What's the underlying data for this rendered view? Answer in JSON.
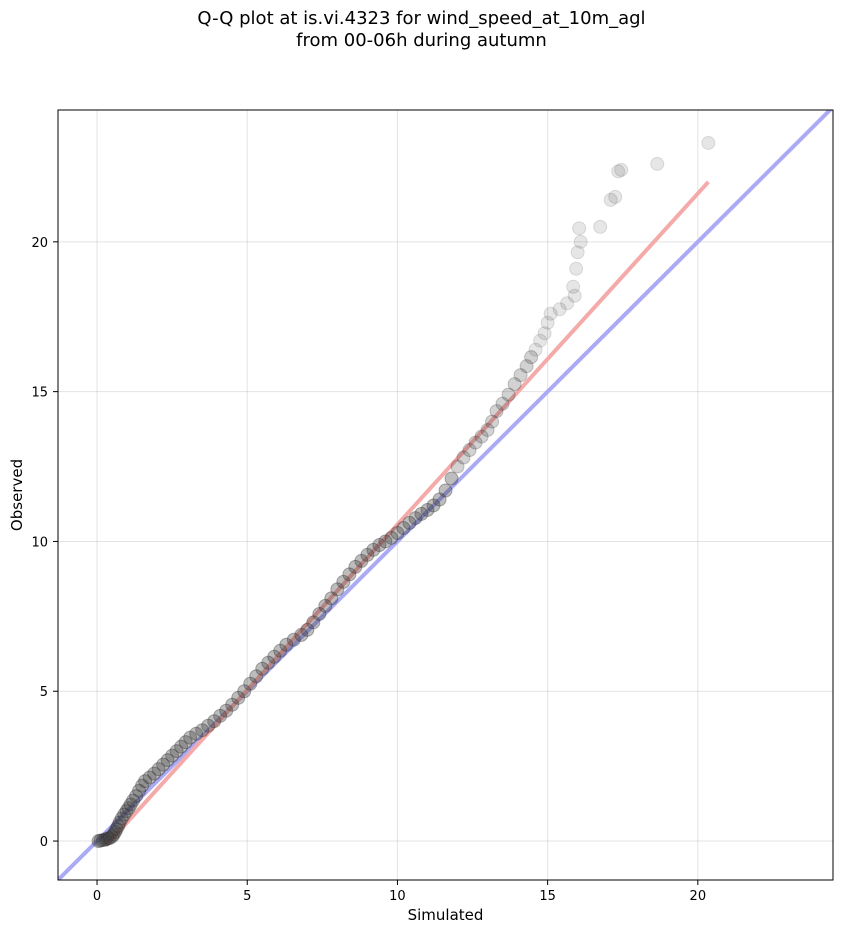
{
  "chart_data": {
    "type": "scatter",
    "title_line1": "Q-Q plot at is.vi.4323 for wind_speed_at_10m_agl",
    "title_line2": "from 00-06h during autumn",
    "xlabel": "Simulated",
    "ylabel": "Observed",
    "xlim": [
      -1.3,
      24.5
    ],
    "ylim": [
      -1.3,
      24.4
    ],
    "xticks": [
      0,
      5,
      10,
      15,
      20
    ],
    "yticks": [
      0,
      5,
      10,
      15,
      20
    ],
    "grid": true,
    "reference_line": {
      "name": "1:1",
      "color": "#aaaaf5",
      "slope": 1,
      "intercept": 0
    },
    "fit_line": {
      "color": "#f5aaaa",
      "x": [
        0.3,
        20.35
      ],
      "y": [
        -0.15,
        22.0
      ]
    },
    "point_color": "#333333",
    "series": [
      {
        "name": "quantiles",
        "points": [
          [
            0.05,
            0.0
          ],
          [
            0.12,
            0.02
          ],
          [
            0.2,
            0.03
          ],
          [
            0.28,
            0.05
          ],
          [
            0.35,
            0.08
          ],
          [
            0.42,
            0.1
          ],
          [
            0.5,
            0.15
          ],
          [
            0.55,
            0.22
          ],
          [
            0.6,
            0.3
          ],
          [
            0.65,
            0.4
          ],
          [
            0.7,
            0.5
          ],
          [
            0.75,
            0.62
          ],
          [
            0.82,
            0.75
          ],
          [
            0.9,
            0.88
          ],
          [
            0.98,
            1.0
          ],
          [
            1.05,
            1.1
          ],
          [
            1.12,
            1.22
          ],
          [
            1.2,
            1.35
          ],
          [
            1.3,
            1.5
          ],
          [
            1.4,
            1.68
          ],
          [
            1.5,
            1.85
          ],
          [
            1.6,
            2.0
          ],
          [
            1.75,
            2.12
          ],
          [
            1.9,
            2.25
          ],
          [
            2.05,
            2.4
          ],
          [
            2.2,
            2.55
          ],
          [
            2.35,
            2.7
          ],
          [
            2.5,
            2.85
          ],
          [
            2.65,
            3.0
          ],
          [
            2.8,
            3.15
          ],
          [
            2.95,
            3.3
          ],
          [
            3.1,
            3.45
          ],
          [
            3.3,
            3.58
          ],
          [
            3.5,
            3.7
          ],
          [
            3.7,
            3.85
          ],
          [
            3.9,
            4.0
          ],
          [
            4.1,
            4.18
          ],
          [
            4.3,
            4.35
          ],
          [
            4.5,
            4.55
          ],
          [
            4.7,
            4.78
          ],
          [
            4.9,
            5.0
          ],
          [
            5.1,
            5.25
          ],
          [
            5.3,
            5.5
          ],
          [
            5.5,
            5.75
          ],
          [
            5.7,
            5.95
          ],
          [
            5.9,
            6.15
          ],
          [
            6.1,
            6.35
          ],
          [
            6.3,
            6.55
          ],
          [
            6.55,
            6.72
          ],
          [
            6.8,
            6.88
          ],
          [
            7.0,
            7.05
          ],
          [
            7.2,
            7.3
          ],
          [
            7.4,
            7.58
          ],
          [
            7.6,
            7.85
          ],
          [
            7.8,
            8.1
          ],
          [
            8.0,
            8.4
          ],
          [
            8.2,
            8.65
          ],
          [
            8.4,
            8.9
          ],
          [
            8.6,
            9.15
          ],
          [
            8.8,
            9.35
          ],
          [
            9.0,
            9.55
          ],
          [
            9.2,
            9.72
          ],
          [
            9.4,
            9.88
          ],
          [
            9.6,
            10.0
          ],
          [
            9.8,
            10.12
          ],
          [
            10.0,
            10.28
          ],
          [
            10.2,
            10.45
          ],
          [
            10.4,
            10.62
          ],
          [
            10.6,
            10.78
          ],
          [
            10.8,
            10.92
          ],
          [
            11.0,
            11.05
          ],
          [
            11.2,
            11.2
          ],
          [
            11.4,
            11.4
          ],
          [
            11.6,
            11.7
          ],
          [
            11.8,
            12.1
          ],
          [
            12.0,
            12.5
          ],
          [
            12.2,
            12.8
          ],
          [
            12.4,
            13.05
          ],
          [
            12.6,
            13.3
          ],
          [
            12.8,
            13.5
          ],
          [
            13.0,
            13.72
          ],
          [
            13.15,
            14.0
          ],
          [
            13.3,
            14.35
          ],
          [
            13.5,
            14.6
          ],
          [
            13.7,
            14.9
          ],
          [
            13.9,
            15.25
          ],
          [
            14.1,
            15.55
          ],
          [
            14.3,
            15.85
          ],
          [
            14.45,
            16.15
          ],
          [
            14.6,
            16.4
          ],
          [
            14.75,
            16.7
          ],
          [
            14.9,
            16.95
          ],
          [
            15.0,
            17.3
          ],
          [
            15.1,
            17.6
          ],
          [
            15.4,
            17.75
          ],
          [
            15.65,
            17.95
          ],
          [
            15.9,
            18.2
          ],
          [
            15.85,
            18.5
          ],
          [
            15.95,
            19.1
          ],
          [
            16.0,
            19.65
          ],
          [
            16.1,
            20.0
          ],
          [
            16.05,
            20.45
          ],
          [
            16.75,
            20.5
          ],
          [
            17.1,
            21.4
          ],
          [
            17.25,
            21.5
          ],
          [
            17.35,
            22.35
          ],
          [
            17.45,
            22.4
          ],
          [
            18.65,
            22.6
          ],
          [
            20.35,
            23.3
          ]
        ]
      }
    ]
  }
}
